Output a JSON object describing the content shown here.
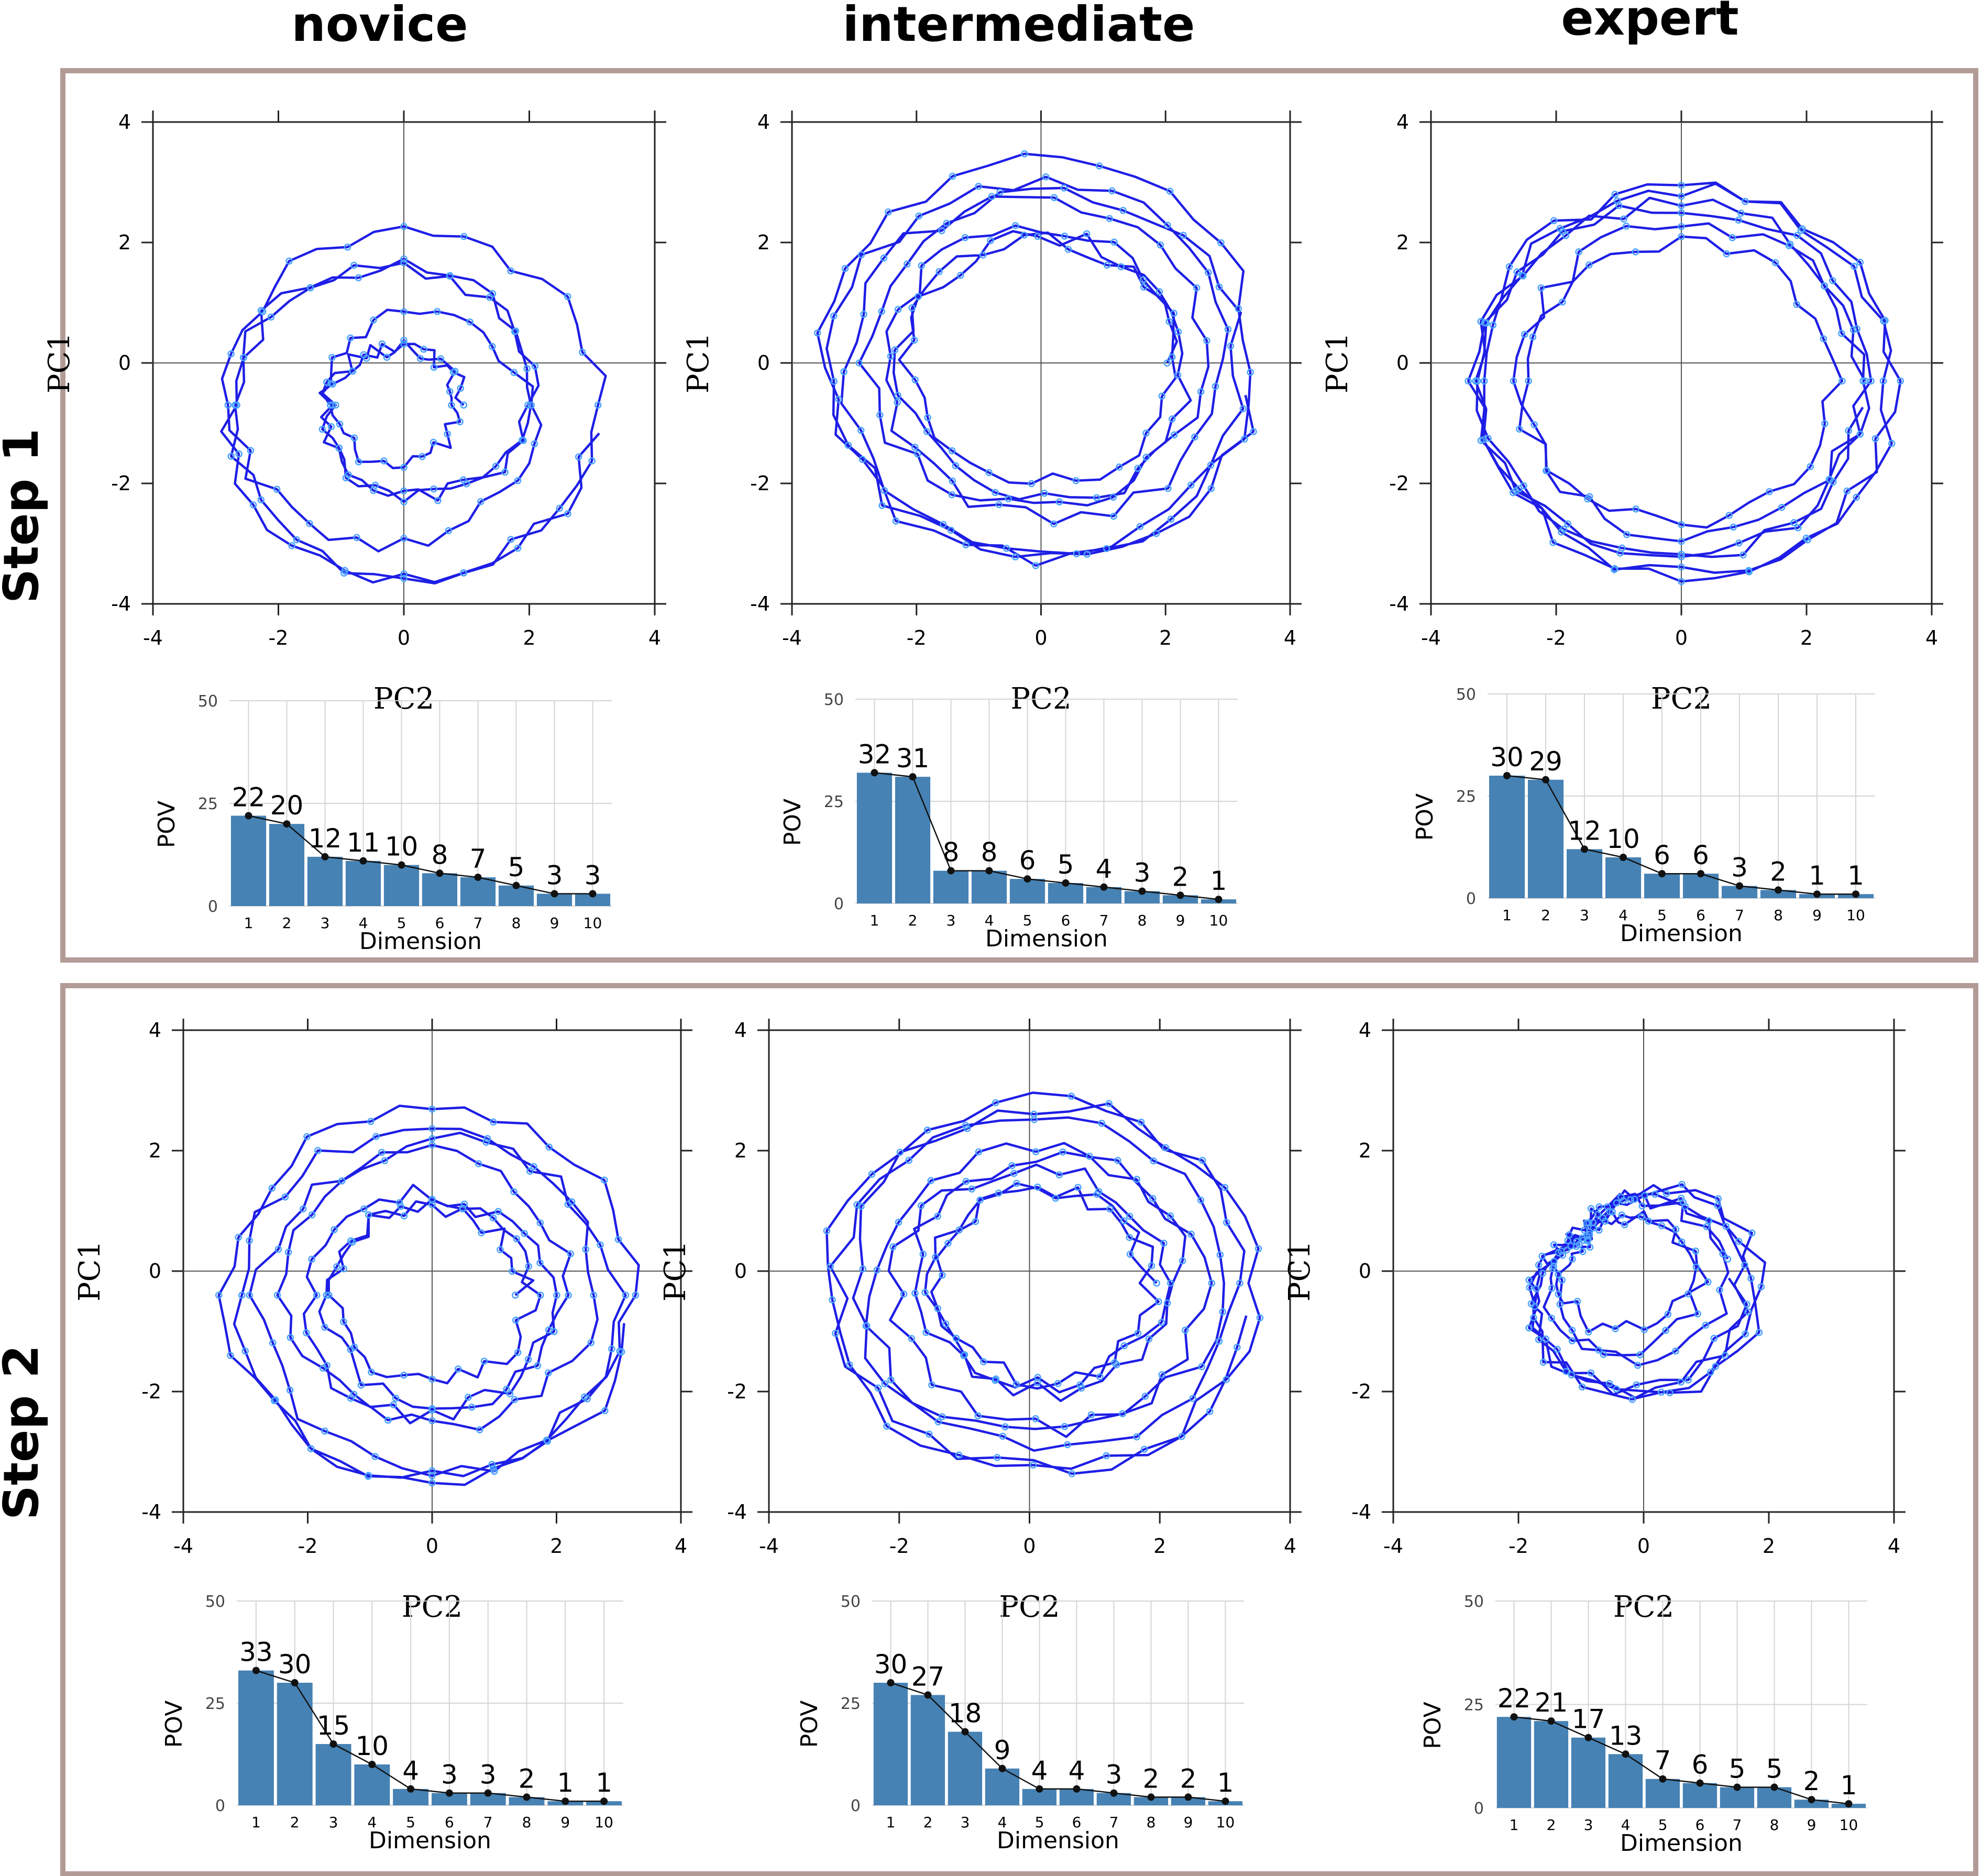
{
  "columns": [
    "novice",
    "intermediate",
    "expert"
  ],
  "rows": [
    "Step 1",
    "Step 2"
  ],
  "colors": {
    "frame": "#b29b97",
    "trajectory_line": "#1e1ee6",
    "trajectory_point": "#4aa3ff",
    "bar": "#4682b4",
    "scree_line": "#111111",
    "grid": "#d4d4d4",
    "axis": "#222222",
    "crosshair": "#555555"
  },
  "chart_data": [
    {
      "type": "scatter",
      "row": "Step 1",
      "column": "novice",
      "title": "",
      "xlabel": "PC2",
      "ylabel": "PC1",
      "xlim": [
        -4,
        4
      ],
      "ylim": [
        -4,
        4
      ],
      "x_ticks": [
        "-4",
        "-2",
        "0",
        "2",
        "4"
      ],
      "y_ticks": [
        "4",
        "2",
        "0",
        "-2",
        "-4"
      ],
      "connected": true,
      "shape": "spiral",
      "params": {
        "cx": 0,
        "cy": -0.7,
        "r_min": 0.9,
        "r_max": 3.1,
        "loops": 6,
        "points": 240
      }
    },
    {
      "type": "bar",
      "row": "Step 1",
      "column": "novice",
      "xlabel": "Dimension",
      "ylabel": "POV",
      "ylim": [
        0,
        50
      ],
      "y_ticks": [
        "0",
        "25",
        "50"
      ],
      "categories": [
        "1",
        "2",
        "3",
        "4",
        "5",
        "6",
        "7",
        "8",
        "9",
        "10"
      ],
      "values": [
        22,
        20,
        12,
        11,
        10,
        8,
        7,
        5,
        3,
        3
      ],
      "labels": [
        "22",
        "20",
        "12",
        "11",
        "10",
        "8",
        "7",
        "5",
        "3",
        "3"
      ]
    },
    {
      "type": "scatter",
      "row": "Step 1",
      "column": "intermediate",
      "title": "",
      "xlabel": "PC2",
      "ylabel": "PC1",
      "xlim": [
        -4,
        4
      ],
      "ylim": [
        -4,
        4
      ],
      "x_ticks": [
        "-4",
        "-2",
        "0",
        "2",
        "4"
      ],
      "y_ticks": [
        "4",
        "2",
        "0",
        "-2",
        "-4"
      ],
      "connected": true,
      "shape": "spiral",
      "params": {
        "cx": 0,
        "cy": 0,
        "r_min": 2.1,
        "r_max": 3.5,
        "loops": 7,
        "points": 260
      }
    },
    {
      "type": "bar",
      "row": "Step 1",
      "column": "intermediate",
      "xlabel": "Dimension",
      "ylabel": "POV",
      "ylim": [
        0,
        50
      ],
      "y_ticks": [
        "0",
        "25",
        "50"
      ],
      "categories": [
        "1",
        "2",
        "3",
        "4",
        "5",
        "6",
        "7",
        "8",
        "9",
        "10"
      ],
      "values": [
        32,
        31,
        8,
        8,
        6,
        5,
        4,
        3,
        2,
        1
      ],
      "labels": [
        "32",
        "31",
        "8",
        "8",
        "6",
        "5",
        "4",
        "3",
        "2",
        "1"
      ]
    },
    {
      "type": "scatter",
      "row": "Step 1",
      "column": "expert",
      "title": "",
      "xlabel": "PC2",
      "ylabel": "PC1",
      "xlim": [
        -4,
        4
      ],
      "ylim": [
        -4,
        4
      ],
      "x_ticks": [
        "-4",
        "-2",
        "0",
        "2",
        "4"
      ],
      "y_ticks": [
        "4",
        "2",
        "0",
        "-2",
        "-4"
      ],
      "connected": true,
      "shape": "ring",
      "params": {
        "cx": 0,
        "cy": -0.3,
        "r_min": 2.4,
        "r_max": 3.4,
        "loops": 6,
        "points": 240
      }
    },
    {
      "type": "bar",
      "row": "Step 1",
      "column": "expert",
      "xlabel": "Dimension",
      "ylabel": "POV",
      "ylim": [
        0,
        50
      ],
      "y_ticks": [
        "0",
        "25",
        "50"
      ],
      "categories": [
        "1",
        "2",
        "3",
        "4",
        "5",
        "6",
        "7",
        "8",
        "9",
        "10"
      ],
      "values": [
        30,
        29,
        12,
        10,
        6,
        6,
        3,
        2,
        1,
        1
      ],
      "labels": [
        "30",
        "29",
        "12",
        "10",
        "6",
        "6",
        "3",
        "2",
        "1",
        "1"
      ]
    },
    {
      "type": "scatter",
      "row": "Step 2",
      "column": "novice",
      "title": "",
      "xlabel": "PC2",
      "ylabel": "PC1",
      "xlim": [
        -4,
        4
      ],
      "ylim": [
        -4,
        4
      ],
      "x_ticks": [
        "-4",
        "-2",
        "0",
        "2",
        "4"
      ],
      "y_ticks": [
        "4",
        "2",
        "0",
        "-2",
        "-4"
      ],
      "connected": true,
      "shape": "spiral",
      "params": {
        "cx": 0,
        "cy": -0.4,
        "r_min": 1.5,
        "r_max": 3.3,
        "loops": 7,
        "points": 280
      }
    },
    {
      "type": "bar",
      "row": "Step 2",
      "column": "novice",
      "xlabel": "Dimension",
      "ylabel": "POV",
      "ylim": [
        0,
        50
      ],
      "y_ticks": [
        "0",
        "25",
        "50"
      ],
      "categories": [
        "1",
        "2",
        "3",
        "4",
        "5",
        "6",
        "7",
        "8",
        "9",
        "10"
      ],
      "values": [
        33,
        30,
        15,
        10,
        4,
        3,
        3,
        2,
        1,
        1
      ],
      "labels": [
        "33",
        "30",
        "15",
        "10",
        "4",
        "3",
        "3",
        "2",
        "1",
        "1"
      ]
    },
    {
      "type": "scatter",
      "row": "Step 2",
      "column": "intermediate",
      "title": "",
      "xlabel": "PC2",
      "ylabel": "PC1",
      "xlim": [
        -4,
        4
      ],
      "ylim": [
        -4,
        4
      ],
      "x_ticks": [
        "-4",
        "-2",
        "0",
        "2",
        "4"
      ],
      "y_ticks": [
        "4",
        "2",
        "0",
        "-2",
        "-4"
      ],
      "connected": true,
      "shape": "spiral",
      "params": {
        "cx": 0.2,
        "cy": -0.2,
        "r_min": 1.6,
        "r_max": 3.3,
        "loops": 8,
        "points": 280
      }
    },
    {
      "type": "bar",
      "row": "Step 2",
      "column": "intermediate",
      "xlabel": "Dimension",
      "ylabel": "POV",
      "ylim": [
        0,
        50
      ],
      "y_ticks": [
        "0",
        "25",
        "50"
      ],
      "categories": [
        "1",
        "2",
        "3",
        "4",
        "5",
        "6",
        "7",
        "8",
        "9",
        "10"
      ],
      "values": [
        30,
        27,
        18,
        9,
        4,
        4,
        3,
        2,
        2,
        1
      ],
      "labels": [
        "30",
        "27",
        "18",
        "9",
        "4",
        "4",
        "3",
        "2",
        "2",
        "1"
      ]
    },
    {
      "type": "scatter",
      "row": "Step 2",
      "column": "expert",
      "title": "",
      "xlabel": "PC2",
      "ylabel": "PC1",
      "xlim": [
        -4,
        4
      ],
      "ylim": [
        -4,
        4
      ],
      "x_ticks": [
        "-4",
        "-2",
        "0",
        "2",
        "4"
      ],
      "y_ticks": [
        "4",
        "2",
        "0",
        "-2",
        "-4"
      ],
      "connected": true,
      "shape": "blob",
      "params": {
        "cx": -0.6,
        "cy": 0.2,
        "r_min": 0.4,
        "r_max": 2.7,
        "loops": 7,
        "points": 260
      }
    },
    {
      "type": "bar",
      "row": "Step 2",
      "column": "expert",
      "xlabel": "Dimension",
      "ylabel": "POV",
      "ylim": [
        0,
        50
      ],
      "y_ticks": [
        "0",
        "25",
        "50"
      ],
      "categories": [
        "1",
        "2",
        "3",
        "4",
        "5",
        "6",
        "7",
        "8",
        "9",
        "10"
      ],
      "values": [
        22,
        21,
        17,
        13,
        7,
        6,
        5,
        5,
        2,
        1
      ],
      "labels": [
        "22",
        "21",
        "17",
        "13",
        "7",
        "6",
        "5",
        "5",
        "2",
        "1"
      ]
    }
  ]
}
